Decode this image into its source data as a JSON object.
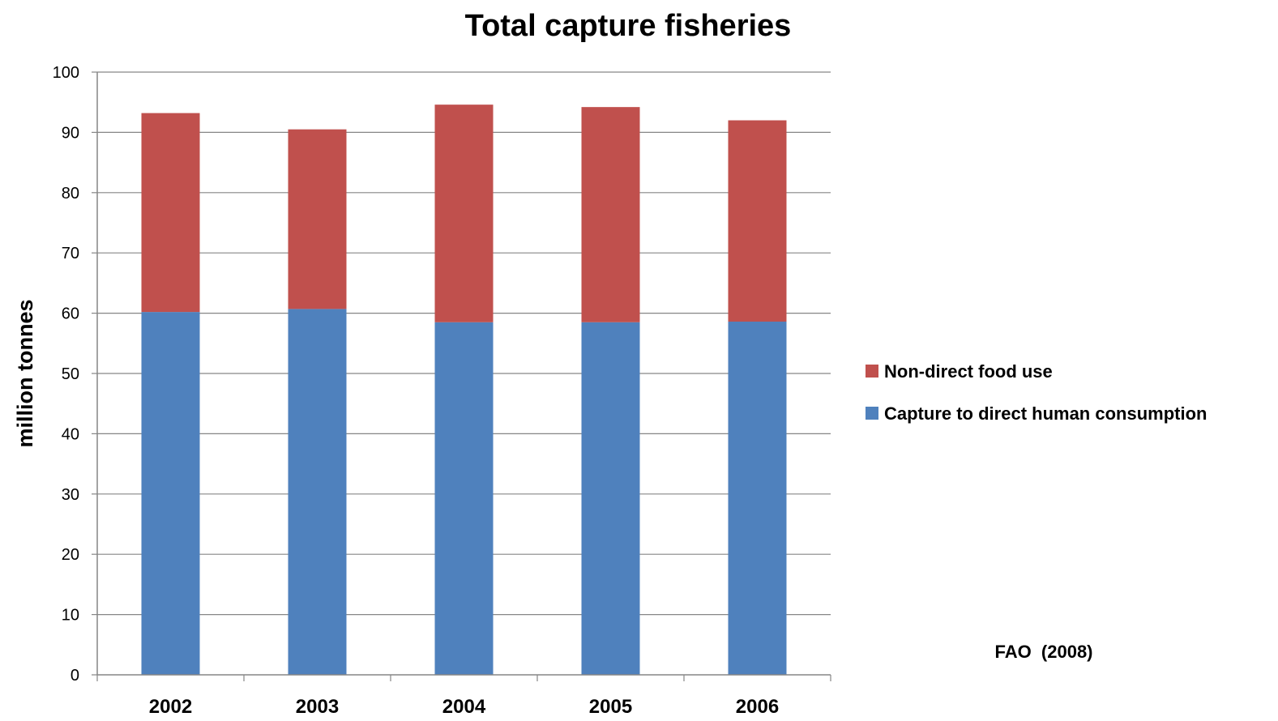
{
  "chart_data": {
    "type": "bar",
    "stacked": true,
    "title": "Total capture fisheries",
    "xlabel": "",
    "ylabel": "million tonnes",
    "ylim": [
      0,
      100
    ],
    "yticks": [
      "0",
      "10",
      "20",
      "30",
      "40",
      "50",
      "60",
      "70",
      "80",
      "90",
      "100"
    ],
    "grid": true,
    "legend_position": "right",
    "categories": [
      "2002",
      "2003",
      "2004",
      "2005",
      "2006"
    ],
    "series": [
      {
        "name": "Capture to direct human consumption",
        "color": "#4F81BD",
        "values": [
          60.2,
          60.7,
          58.5,
          58.5,
          58.6
        ]
      },
      {
        "name": "Non-direct food use",
        "color": "#C0504D",
        "values": [
          33.0,
          29.8,
          36.1,
          35.7,
          33.4
        ]
      }
    ],
    "legend_order": [
      "Non-direct food use",
      "Capture to direct human consumption"
    ],
    "annotation": "FAO  (2008)"
  }
}
